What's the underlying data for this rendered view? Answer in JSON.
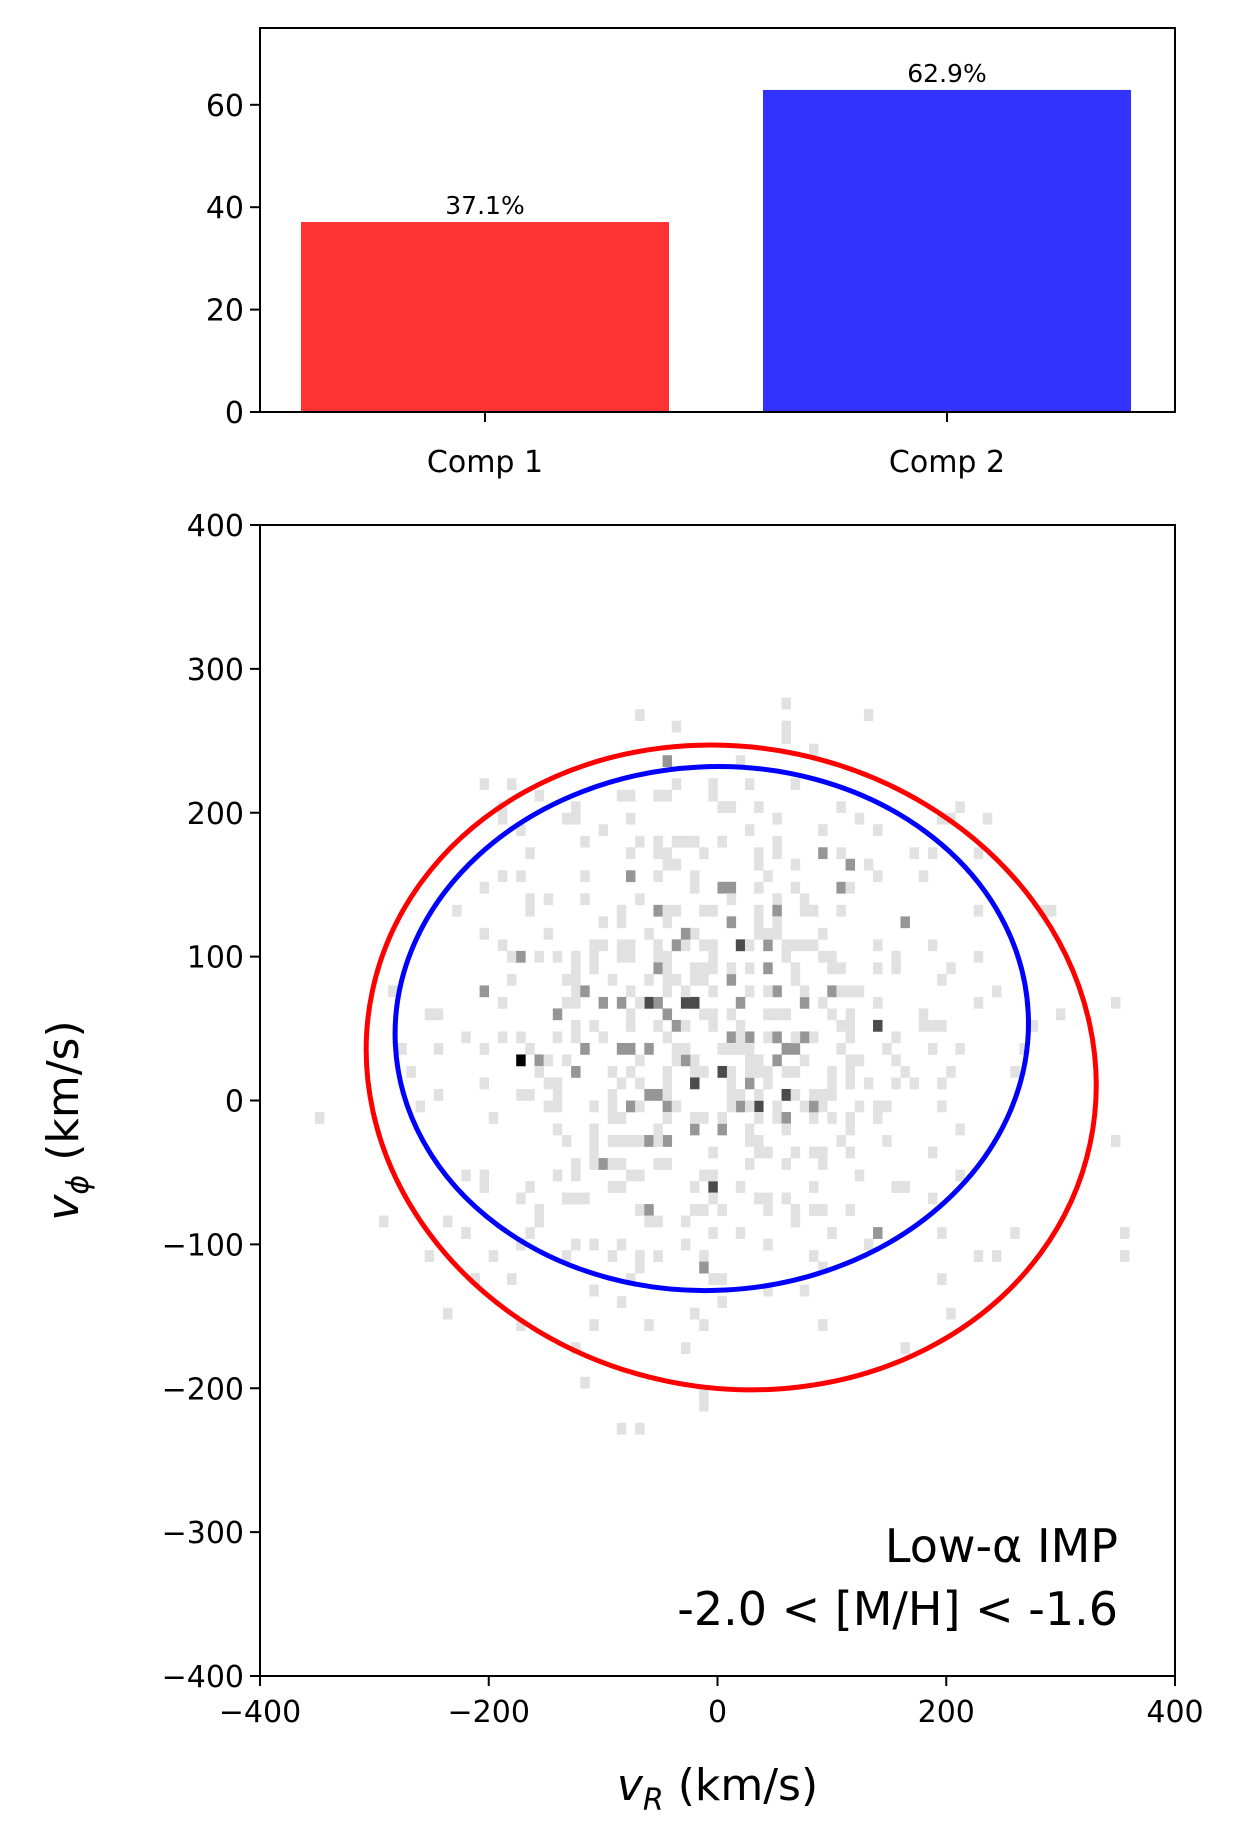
{
  "chart_data": [
    {
      "type": "bar",
      "categories": [
        "Comp 1",
        "Comp 2"
      ],
      "values": [
        37.1,
        62.9
      ],
      "bar_labels": [
        "37.1%",
        "62.9%"
      ],
      "colors": [
        "#ff3333",
        "#3333ff"
      ],
      "ylim": [
        0,
        75
      ],
      "yticks": [
        0,
        20,
        40,
        60
      ],
      "ytick_labels": [
        "0",
        "20",
        "40",
        "60"
      ]
    },
    {
      "type": "heatmap",
      "xlabel_var": "v",
      "xlabel_sub": "R",
      "xlabel_unit": " (km/s)",
      "ylabel_var": "v",
      "ylabel_sub": "ϕ",
      "ylabel_unit": " (km/s)",
      "xlim": [
        -400,
        400
      ],
      "ylim": [
        -400,
        400
      ],
      "xticks": [
        -400,
        -200,
        0,
        200,
        400
      ],
      "xtick_labels": [
        "−400",
        "−200",
        "0",
        "200",
        "400"
      ],
      "yticks": [
        -400,
        -300,
        -200,
        -100,
        0,
        100,
        200,
        300,
        400
      ],
      "ytick_labels": [
        "−400",
        "−300",
        "−200",
        "−100",
        "0",
        "100",
        "200",
        "300",
        "400"
      ],
      "annotation_line1": "Low-α IMP",
      "annotation_line2": "-2.0 < [M/H] < -1.6",
      "ellipses": [
        {
          "name": "Comp 1",
          "color": "#ff0000",
          "center": [
            12,
            23
          ],
          "semi_axes": [
            280,
            255
          ],
          "angle_deg": -78
        },
        {
          "name": "Comp 2",
          "color": "#0000ff",
          "center": [
            -5,
            50
          ],
          "semi_axes": [
            277,
            182
          ],
          "angle_deg": -3
        }
      ],
      "hist": {
        "bin_size": 8,
        "seed": 7,
        "n_stars": 620,
        "center": [
          -5,
          40
        ],
        "sigma": [
          115,
          95
        ]
      }
    }
  ]
}
